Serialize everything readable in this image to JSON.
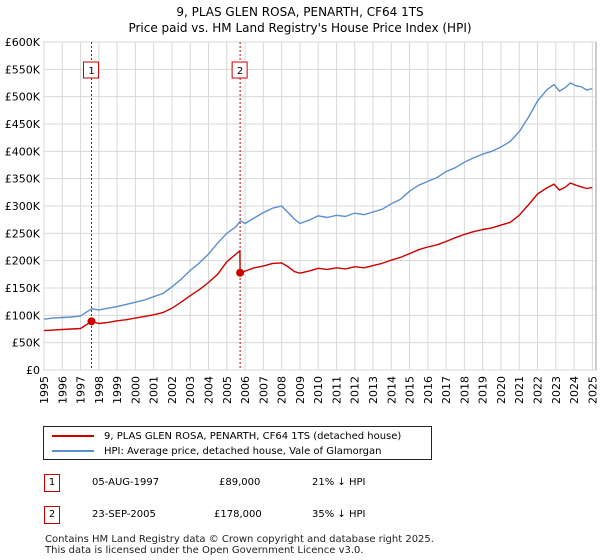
{
  "title_line1": "9, PLAS GLEN ROSA, PENARTH, CF64 1TS",
  "title_line2": "Price paid vs. HM Land Registry's House Price Index (HPI)",
  "legend": {
    "series1": "9, PLAS GLEN ROSA, PENARTH, CF64 1TS (detached house)",
    "series2": "HPI: Average price, detached house, Vale of Glamorgan"
  },
  "transactions": [
    {
      "num": "1",
      "date": "05-AUG-1997",
      "price": "£89,000",
      "hpi": "21% ↓ HPI"
    },
    {
      "num": "2",
      "date": "23-SEP-2005",
      "price": "£178,000",
      "hpi": "35% ↓ HPI"
    }
  ],
  "footer": {
    "line1": "Contains HM Land Registry data © Crown copyright and database right 2025.",
    "line2": "This data is licensed under the Open Government Licence v3.0."
  },
  "colors": {
    "price": "#cc0000",
    "hpi": "#5b8fd0",
    "grid": "#d8d8d8",
    "marker": "#cc0000"
  },
  "chart_data": {
    "type": "line",
    "title": "9, PLAS GLEN ROSA, PENARTH, CF64 1TS — Price paid vs. HM Land Registry's House Price Index (HPI)",
    "xlabel": "",
    "ylabel": "",
    "xlim": [
      1995,
      2025.2
    ],
    "ylim": [
      0,
      600000
    ],
    "yticks": [
      0,
      50000,
      100000,
      150000,
      200000,
      250000,
      300000,
      350000,
      400000,
      450000,
      500000,
      550000,
      600000
    ],
    "ytick_labels": [
      "£0",
      "£50K",
      "£100K",
      "£150K",
      "£200K",
      "£250K",
      "£300K",
      "£350K",
      "£400K",
      "£450K",
      "£500K",
      "£550K",
      "£600K"
    ],
    "xticks": [
      1995,
      1996,
      1997,
      1998,
      1999,
      2000,
      2001,
      2002,
      2003,
      2004,
      2005,
      2006,
      2007,
      2008,
      2009,
      2010,
      2011,
      2012,
      2013,
      2014,
      2015,
      2016,
      2017,
      2018,
      2019,
      2020,
      2021,
      2022,
      2023,
      2024,
      2025
    ],
    "grid": true,
    "series": [
      {
        "name": "HPI: Average price, detached house, Vale of Glamorgan",
        "x": [
          1995,
          1995.5,
          1996,
          1996.5,
          1997,
          1997.6,
          1998,
          1998.5,
          1999,
          1999.5,
          2000,
          2000.5,
          2001,
          2001.5,
          2002,
          2002.5,
          2003,
          2003.5,
          2004,
          2004.5,
          2005,
          2005.5,
          2005.75,
          2006,
          2006.5,
          2007,
          2007.5,
          2008,
          2008.3,
          2008.7,
          2009,
          2009.5,
          2010,
          2010.5,
          2011,
          2011.5,
          2012,
          2012.5,
          2013,
          2013.5,
          2014,
          2014.5,
          2015,
          2015.5,
          2016,
          2016.5,
          2017,
          2017.5,
          2018,
          2018.5,
          2019,
          2019.5,
          2020,
          2020.5,
          2021,
          2021.5,
          2022,
          2022.5,
          2022.9,
          2023.2,
          2023.5,
          2023.8,
          2024.1,
          2024.4,
          2024.7,
          2025
        ],
        "values": [
          93000,
          95000,
          96000,
          97000,
          99000,
          112000,
          110000,
          113000,
          116000,
          120000,
          124000,
          128000,
          134000,
          140000,
          152000,
          166000,
          182000,
          196000,
          212000,
          232000,
          250000,
          262000,
          273000,
          268000,
          278000,
          288000,
          296000,
          300000,
          290000,
          276000,
          268000,
          274000,
          282000,
          279000,
          283000,
          281000,
          287000,
          284000,
          289000,
          294000,
          304000,
          312000,
          327000,
          338000,
          345000,
          352000,
          363000,
          370000,
          380000,
          388000,
          395000,
          400000,
          408000,
          418000,
          436000,
          462000,
          492000,
          512000,
          522000,
          510000,
          516000,
          525000,
          520000,
          518000,
          512000,
          515000
        ]
      },
      {
        "name": "9, PLAS GLEN ROSA, PENARTH, CF64 1TS (detached house)",
        "x": [
          1995,
          1995.5,
          1996,
          1996.5,
          1997,
          1997.6,
          1998,
          1998.5,
          1999,
          1999.5,
          2000,
          2000.5,
          2001,
          2001.5,
          2002,
          2002.5,
          2003,
          2003.5,
          2004,
          2004.5,
          2005,
          2005.5,
          2005.72,
          2005.73,
          2006,
          2006.5,
          2007,
          2007.5,
          2008,
          2008.3,
          2008.7,
          2009,
          2009.5,
          2010,
          2010.5,
          2011,
          2011.5,
          2012,
          2012.5,
          2013,
          2013.5,
          2014,
          2014.5,
          2015,
          2015.5,
          2016,
          2016.5,
          2017,
          2017.5,
          2018,
          2018.5,
          2019,
          2019.5,
          2020,
          2020.5,
          2021,
          2021.5,
          2022,
          2022.5,
          2022.9,
          2023.2,
          2023.5,
          2023.8,
          2024.1,
          2024.4,
          2024.7,
          2025
        ],
        "values": [
          72000,
          73000,
          74000,
          75000,
          76000,
          89000,
          85000,
          87000,
          90000,
          92000,
          95000,
          98000,
          101000,
          105000,
          113000,
          124000,
          136000,
          147000,
          160000,
          175000,
          198000,
          212000,
          218000,
          178000,
          181000,
          187000,
          190000,
          195000,
          196000,
          190000,
          180000,
          177000,
          181000,
          186000,
          184000,
          187000,
          185000,
          189000,
          187000,
          191000,
          195000,
          201000,
          206000,
          213000,
          220000,
          225000,
          229000,
          235000,
          242000,
          248000,
          253000,
          257000,
          260000,
          265000,
          270000,
          283000,
          302000,
          322000,
          333000,
          340000,
          329000,
          334000,
          342000,
          338000,
          335000,
          332000,
          334000
        ]
      }
    ],
    "annotations": [
      {
        "label": "1",
        "x": 1997.6,
        "sale_price": 89000
      },
      {
        "label": "2",
        "x": 2005.73,
        "sale_price": 178000
      }
    ]
  }
}
